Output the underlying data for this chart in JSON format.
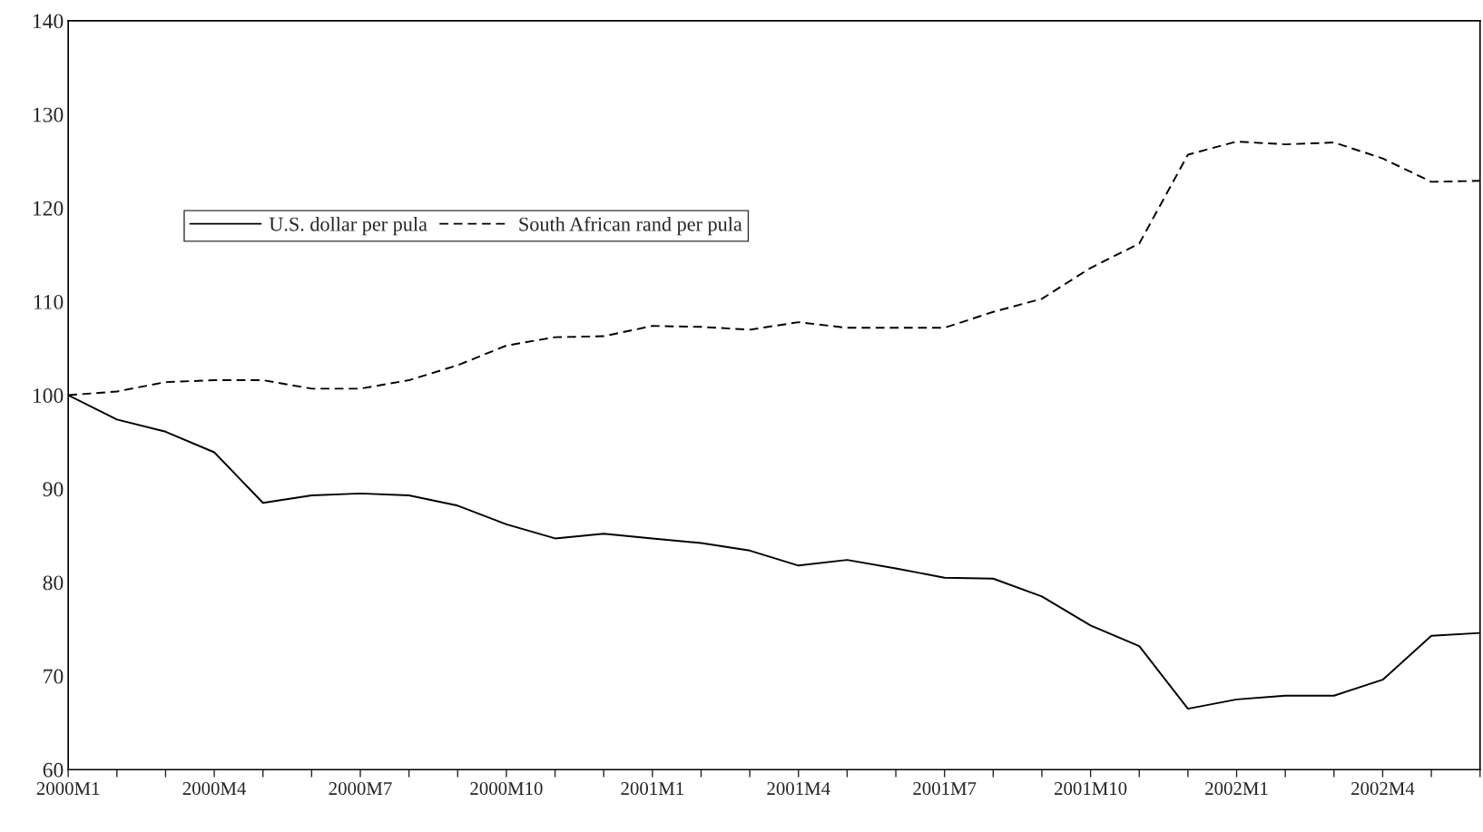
{
  "chart_data": {
    "type": "line",
    "categories": [
      "2000M1",
      null,
      null,
      "2000M4",
      null,
      null,
      "2000M7",
      null,
      null,
      "2000M10",
      null,
      null,
      "2001M1",
      null,
      null,
      "2001M4",
      null,
      null,
      "2001M7",
      null,
      null,
      "2001M10",
      null,
      null,
      "2002M1",
      null,
      null,
      "2002M4",
      null,
      null
    ],
    "series": [
      {
        "name": "U.S. dollar per pula",
        "color": "#000000",
        "line_style": "solid",
        "values": [
          100,
          97.4,
          96.1,
          93.9,
          88.5,
          89.3,
          89.5,
          89.3,
          88.2,
          86.2,
          84.7,
          85.2,
          84.7,
          84.2,
          83.4,
          81.8,
          82.4,
          81.5,
          80.5,
          80.4,
          78.5,
          75.4,
          73.2,
          66.5,
          67.5,
          67.9,
          67.9,
          69.6,
          74.3,
          74.6
        ]
      },
      {
        "name": "South African rand per pula",
        "color": "#000000",
        "line_style": "dashed",
        "values": [
          100,
          100.4,
          101.4,
          101.6,
          101.6,
          100.7,
          100.7,
          101.6,
          103.2,
          105.3,
          106.2,
          106.3,
          107.4,
          107.3,
          107.0,
          107.8,
          107.2,
          107.2,
          107.2,
          108.9,
          110.3,
          113.6,
          116.2,
          125.7,
          127.1,
          126.8,
          127.0,
          125.3,
          122.8,
          122.9
        ]
      }
    ],
    "ylim": [
      60,
      140
    ],
    "yticks": [
      60,
      70,
      80,
      90,
      100,
      110,
      120,
      130,
      140
    ],
    "grid": false,
    "legend": "upper left",
    "marker": "none"
  }
}
